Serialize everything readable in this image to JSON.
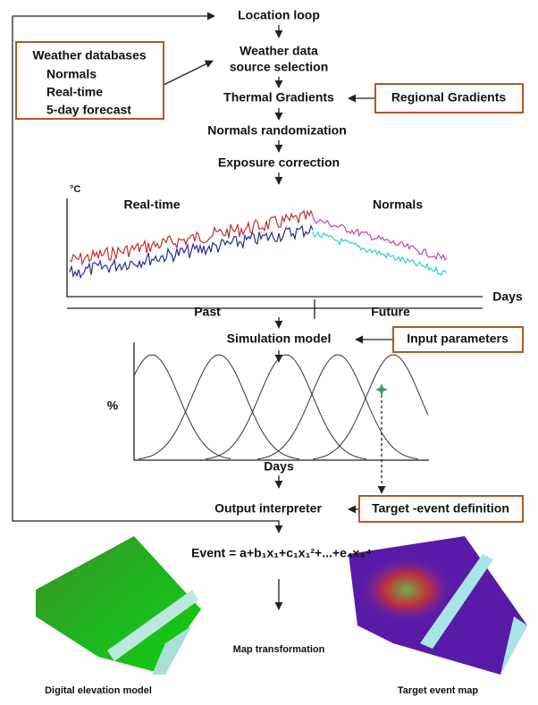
{
  "location_loop": "Location loop",
  "source_selection": {
    "line1": "Weather data",
    "line2": "source selection"
  },
  "weather_databases": {
    "title": "Weather databases",
    "items": [
      "Normals",
      "Real-time",
      "5-day forecast"
    ]
  },
  "thermal_gradients": "Thermal Gradients",
  "regional_gradients": "Regional Gradients",
  "normals_randomization": "Normals randomization",
  "exposure_correction": "Exposure correction",
  "temperature_chart": {
    "y_label": "°C",
    "real_time": "Real-time",
    "normals": "Normals",
    "x_label": "Days",
    "past": "Past",
    "future": "Future"
  },
  "simulation_model": "Simulation model",
  "input_parameters": "Input parameters",
  "distribution_chart": {
    "y_label": "%",
    "x_label": "Days"
  },
  "output_interpreter": "Output interpreter",
  "target_event_definition": "Target -event definition",
  "event_equation": "Event = a+b₁x₁+c₁x₁²+...+e₄x₄⁴",
  "map_transformation": "Map transformation",
  "digital_elevation_model": "Digital elevation model",
  "target_event_map": "Target event map"
}
